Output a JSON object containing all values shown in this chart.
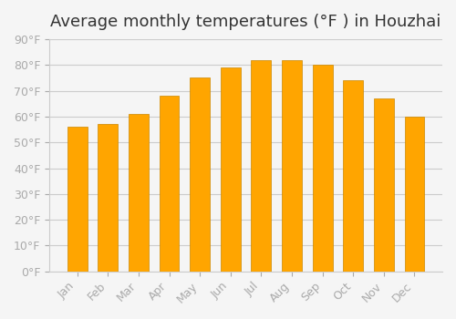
{
  "title": "Average monthly temperatures (°F ) in Houzhai",
  "months": [
    "Jan",
    "Feb",
    "Mar",
    "Apr",
    "May",
    "Jun",
    "Jul",
    "Aug",
    "Sep",
    "Oct",
    "Nov",
    "Dec"
  ],
  "values": [
    56,
    57,
    61,
    68,
    75,
    79,
    82,
    82,
    80,
    74,
    67,
    60
  ],
  "bar_color": "#FFA500",
  "bar_edge_color": "#CC8800",
  "background_color": "#F5F5F5",
  "grid_color": "#CCCCCC",
  "ylim": [
    0,
    90
  ],
  "yticks": [
    0,
    10,
    20,
    30,
    40,
    50,
    60,
    70,
    80,
    90
  ],
  "title_fontsize": 13,
  "tick_fontsize": 9,
  "tick_color": "#AAAAAA",
  "spine_color": "#CCCCCC"
}
